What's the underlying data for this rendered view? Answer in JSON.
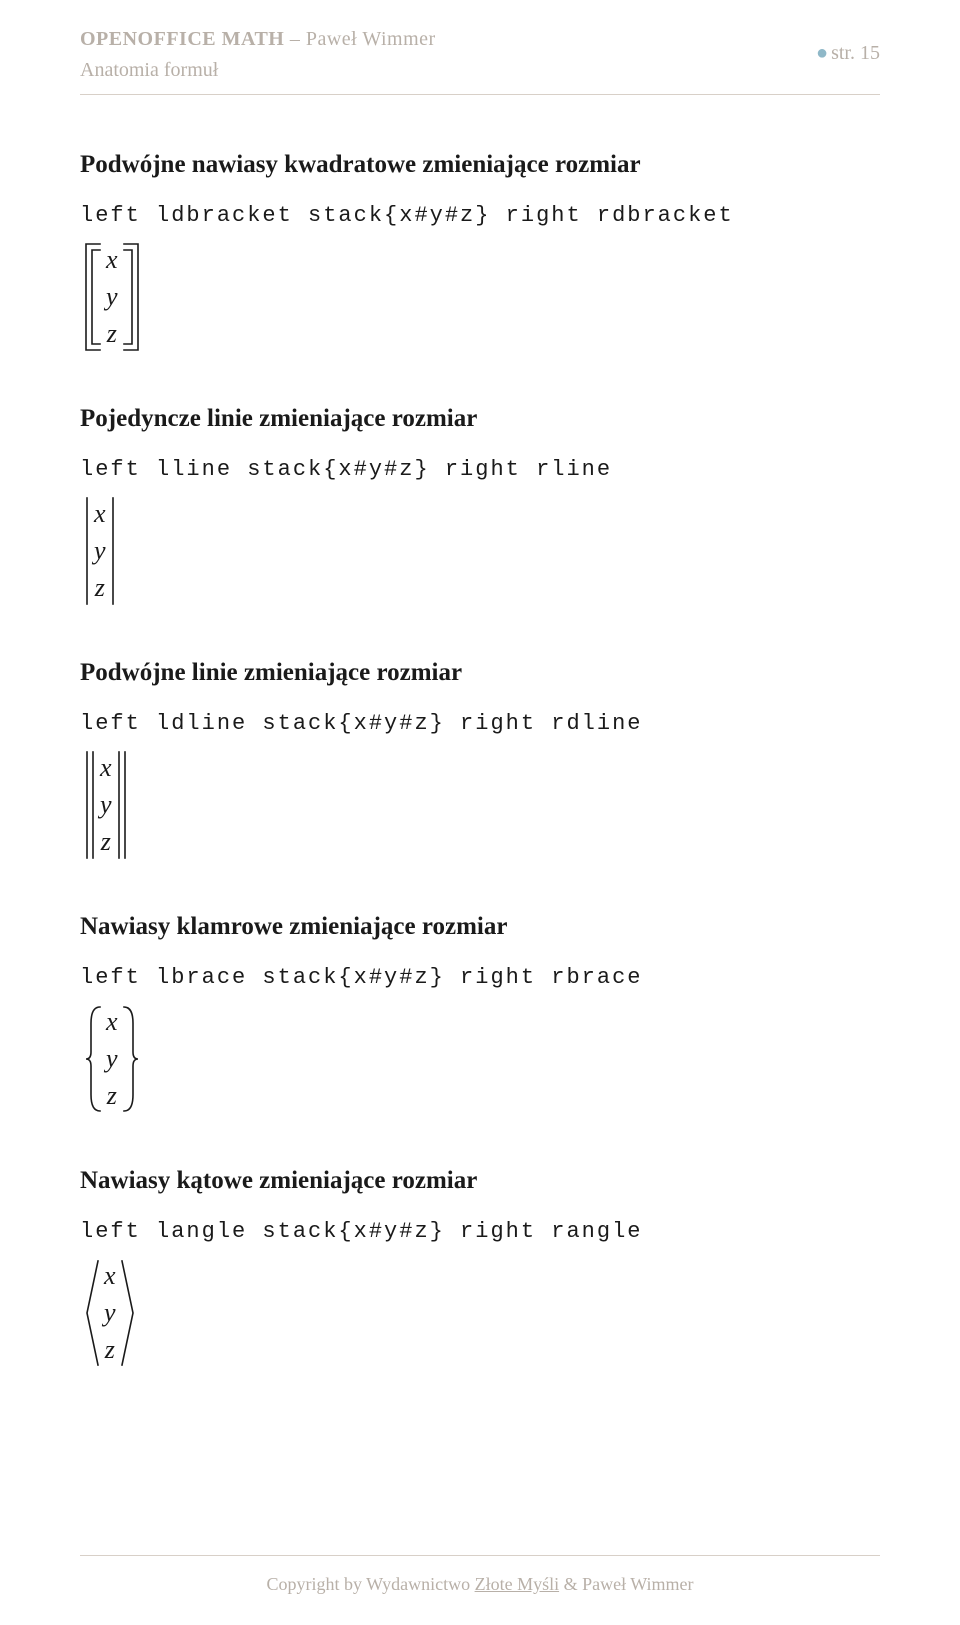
{
  "header": {
    "title_strong": "OPENOFFICE MATH",
    "title_sep": " – ",
    "author": "Paweł Wimmer",
    "subtitle": "Anatomia formuł",
    "pagenum_prefix": "str. ",
    "pagenum": "15"
  },
  "sections": [
    {
      "title": "Podwójne nawiasy kwadratowe zmieniające rozmiar",
      "code": "left ldbracket stack{x#y#z} right rdbracket",
      "bracket": "dbracket",
      "vars": [
        "x",
        "y",
        "z"
      ]
    },
    {
      "title": "Pojedyncze linie zmieniające rozmiar",
      "code": "left lline stack{x#y#z} right rline",
      "bracket": "line",
      "vars": [
        "x",
        "y",
        "z"
      ]
    },
    {
      "title": "Podwójne linie zmieniające rozmiar",
      "code": "left ldline stack{x#y#z} right rdline",
      "bracket": "dline",
      "vars": [
        "x",
        "y",
        "z"
      ]
    },
    {
      "title": "Nawiasy klamrowe zmieniające rozmiar",
      "code": "left lbrace stack{x#y#z} right rbrace",
      "bracket": "brace",
      "vars": [
        "x",
        "y",
        "z"
      ]
    },
    {
      "title": "Nawiasy kątowe zmieniające rozmiar",
      "code": "left langle stack{x#y#z} right rangle",
      "bracket": "angle",
      "vars": [
        "x",
        "y",
        "z"
      ]
    }
  ],
  "footer": {
    "pre": "Copyright by Wydawnictwo ",
    "link": "Złote Myśli",
    "post": " & Paweł Wimmer"
  },
  "style": {
    "bracket_stroke": "#1a1a1a",
    "bracket_stroke_width": 1.6,
    "formula_height": 110
  }
}
